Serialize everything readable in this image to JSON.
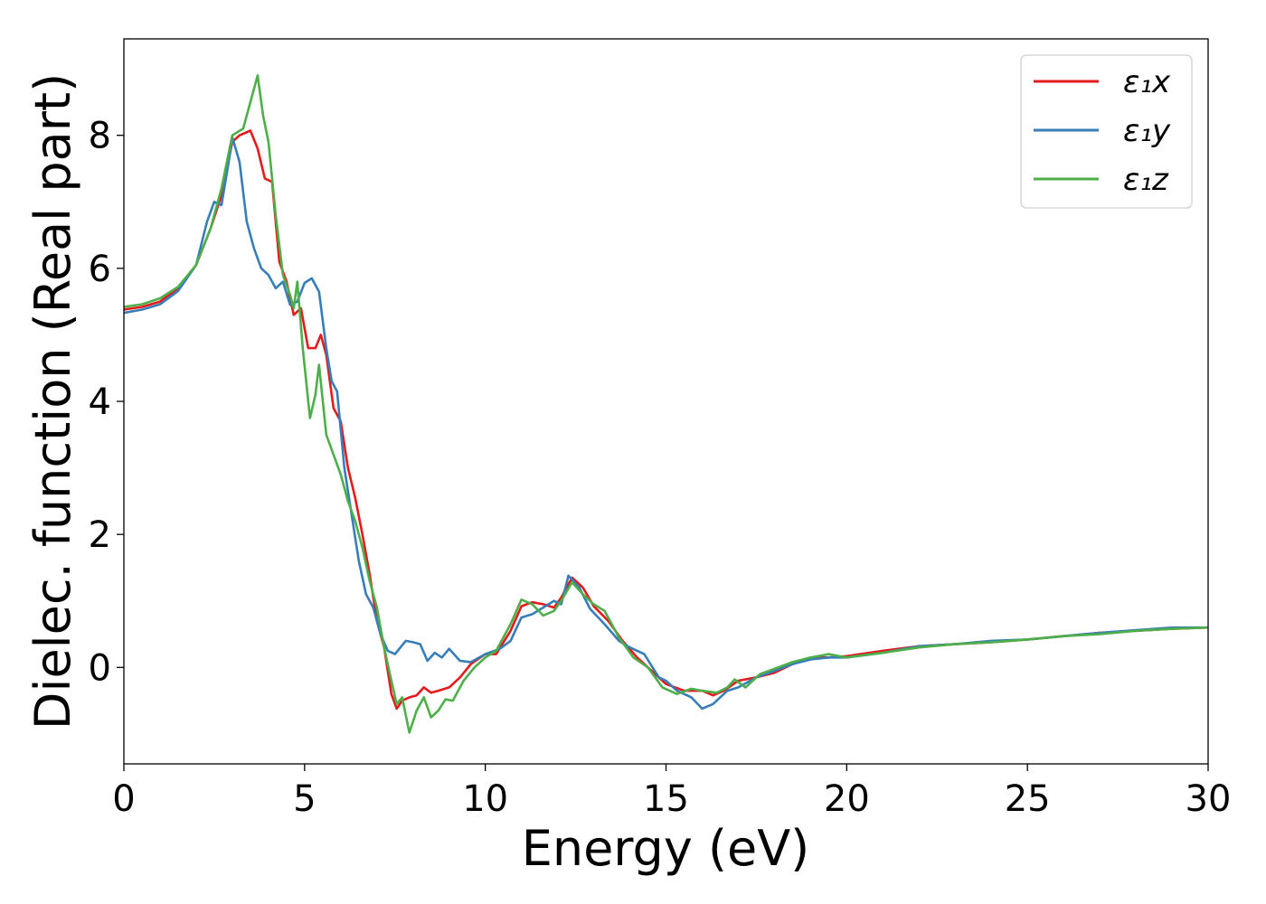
{
  "chart_data": {
    "type": "line",
    "xlabel": "Energy (eV)",
    "ylabel": "Dielec. function (Real part)",
    "xlim": [
      0,
      30
    ],
    "ylim": [
      -1.45,
      9.45
    ],
    "xticks": [
      0,
      5,
      10,
      15,
      20,
      25,
      30
    ],
    "yticks": [
      0,
      2,
      4,
      6,
      8
    ],
    "grid": false,
    "legend": "top-right",
    "series": [
      {
        "name": "ε₁x",
        "color": "#e41a1c",
        "points": [
          [
            0,
            5.38
          ],
          [
            0.5,
            5.42
          ],
          [
            1,
            5.5
          ],
          [
            1.5,
            5.7
          ],
          [
            2,
            6.05
          ],
          [
            2.4,
            6.6
          ],
          [
            2.7,
            7.1
          ],
          [
            3,
            7.9
          ],
          [
            3.2,
            8.0
          ],
          [
            3.5,
            8.07
          ],
          [
            3.7,
            7.8
          ],
          [
            3.9,
            7.35
          ],
          [
            4.1,
            7.3
          ],
          [
            4.3,
            6.1
          ],
          [
            4.5,
            5.8
          ],
          [
            4.7,
            5.3
          ],
          [
            4.9,
            5.4
          ],
          [
            5.1,
            4.8
          ],
          [
            5.3,
            4.8
          ],
          [
            5.45,
            5.0
          ],
          [
            5.6,
            4.7
          ],
          [
            5.8,
            3.9
          ],
          [
            6.0,
            3.7
          ],
          [
            6.2,
            3.0
          ],
          [
            6.4,
            2.55
          ],
          [
            6.6,
            2.0
          ],
          [
            6.8,
            1.4
          ],
          [
            7.0,
            0.7
          ],
          [
            7.2,
            0.3
          ],
          [
            7.4,
            -0.4
          ],
          [
            7.55,
            -0.62
          ],
          [
            7.7,
            -0.5
          ],
          [
            7.9,
            -0.45
          ],
          [
            8.1,
            -0.42
          ],
          [
            8.3,
            -0.3
          ],
          [
            8.5,
            -0.38
          ],
          [
            8.7,
            -0.35
          ],
          [
            9.0,
            -0.3
          ],
          [
            9.3,
            -0.15
          ],
          [
            9.6,
            0.05
          ],
          [
            10.0,
            0.2
          ],
          [
            10.3,
            0.2
          ],
          [
            10.7,
            0.55
          ],
          [
            11.0,
            0.92
          ],
          [
            11.3,
            0.98
          ],
          [
            11.6,
            0.95
          ],
          [
            11.9,
            0.9
          ],
          [
            12.1,
            1.05
          ],
          [
            12.4,
            1.35
          ],
          [
            12.7,
            1.2
          ],
          [
            13.0,
            0.92
          ],
          [
            13.4,
            0.7
          ],
          [
            13.8,
            0.4
          ],
          [
            14.2,
            0.15
          ],
          [
            14.6,
            -0.05
          ],
          [
            15.0,
            -0.25
          ],
          [
            15.5,
            -0.35
          ],
          [
            16.0,
            -0.35
          ],
          [
            16.3,
            -0.42
          ],
          [
            16.6,
            -0.35
          ],
          [
            17.0,
            -0.2
          ],
          [
            17.5,
            -0.15
          ],
          [
            18.0,
            -0.08
          ],
          [
            18.5,
            0.05
          ],
          [
            19.0,
            0.15
          ],
          [
            19.5,
            0.15
          ],
          [
            20.0,
            0.17
          ],
          [
            21.0,
            0.25
          ],
          [
            22.0,
            0.32
          ],
          [
            23.0,
            0.35
          ],
          [
            24.0,
            0.38
          ],
          [
            25.0,
            0.42
          ],
          [
            26.0,
            0.47
          ],
          [
            27.0,
            0.52
          ],
          [
            28.0,
            0.55
          ],
          [
            29.0,
            0.58
          ],
          [
            30.0,
            0.6
          ]
        ]
      },
      {
        "name": "ε₁y",
        "color": "#377eb8",
        "points": [
          [
            0,
            5.33
          ],
          [
            0.5,
            5.38
          ],
          [
            1,
            5.46
          ],
          [
            1.5,
            5.66
          ],
          [
            2,
            6.05
          ],
          [
            2.3,
            6.7
          ],
          [
            2.5,
            7.0
          ],
          [
            2.7,
            6.95
          ],
          [
            2.9,
            7.6
          ],
          [
            3.0,
            7.97
          ],
          [
            3.2,
            7.6
          ],
          [
            3.4,
            6.7
          ],
          [
            3.6,
            6.3
          ],
          [
            3.8,
            6.0
          ],
          [
            4.0,
            5.9
          ],
          [
            4.2,
            5.7
          ],
          [
            4.4,
            5.8
          ],
          [
            4.6,
            5.45
          ],
          [
            4.8,
            5.5
          ],
          [
            5.0,
            5.78
          ],
          [
            5.2,
            5.85
          ],
          [
            5.4,
            5.65
          ],
          [
            5.6,
            4.8
          ],
          [
            5.75,
            4.3
          ],
          [
            5.9,
            4.15
          ],
          [
            6.1,
            3.0
          ],
          [
            6.3,
            2.3
          ],
          [
            6.5,
            1.6
          ],
          [
            6.7,
            1.1
          ],
          [
            6.9,
            0.9
          ],
          [
            7.1,
            0.5
          ],
          [
            7.3,
            0.25
          ],
          [
            7.5,
            0.2
          ],
          [
            7.8,
            0.4
          ],
          [
            8.0,
            0.38
          ],
          [
            8.2,
            0.35
          ],
          [
            8.4,
            0.1
          ],
          [
            8.6,
            0.22
          ],
          [
            8.8,
            0.15
          ],
          [
            9.0,
            0.28
          ],
          [
            9.3,
            0.1
          ],
          [
            9.6,
            0.08
          ],
          [
            10.0,
            0.2
          ],
          [
            10.4,
            0.28
          ],
          [
            10.7,
            0.4
          ],
          [
            11.0,
            0.75
          ],
          [
            11.3,
            0.8
          ],
          [
            11.6,
            0.9
          ],
          [
            11.9,
            1.0
          ],
          [
            12.1,
            0.95
          ],
          [
            12.3,
            1.38
          ],
          [
            12.6,
            1.2
          ],
          [
            12.9,
            0.88
          ],
          [
            13.3,
            0.65
          ],
          [
            13.7,
            0.4
          ],
          [
            14.0,
            0.3
          ],
          [
            14.4,
            0.2
          ],
          [
            14.8,
            -0.15
          ],
          [
            15.0,
            -0.2
          ],
          [
            15.3,
            -0.35
          ],
          [
            15.7,
            -0.45
          ],
          [
            16.0,
            -0.62
          ],
          [
            16.3,
            -0.55
          ],
          [
            16.7,
            -0.35
          ],
          [
            17.0,
            -0.3
          ],
          [
            17.5,
            -0.15
          ],
          [
            18.0,
            -0.05
          ],
          [
            18.5,
            0.05
          ],
          [
            19.0,
            0.12
          ],
          [
            19.5,
            0.15
          ],
          [
            20.0,
            0.15
          ],
          [
            21.0,
            0.22
          ],
          [
            22.0,
            0.32
          ],
          [
            23.0,
            0.35
          ],
          [
            24.0,
            0.4
          ],
          [
            25.0,
            0.42
          ],
          [
            26.0,
            0.47
          ],
          [
            27.0,
            0.52
          ],
          [
            28.0,
            0.56
          ],
          [
            29.0,
            0.6
          ],
          [
            30.0,
            0.6
          ]
        ]
      },
      {
        "name": "ε₁z",
        "color": "#4daf4a",
        "points": [
          [
            0,
            5.42
          ],
          [
            0.5,
            5.46
          ],
          [
            1,
            5.55
          ],
          [
            1.5,
            5.72
          ],
          [
            2,
            6.05
          ],
          [
            2.4,
            6.6
          ],
          [
            2.7,
            7.2
          ],
          [
            3.0,
            8.0
          ],
          [
            3.3,
            8.1
          ],
          [
            3.5,
            8.5
          ],
          [
            3.7,
            8.9
          ],
          [
            3.85,
            8.3
          ],
          [
            4.0,
            7.9
          ],
          [
            4.2,
            6.8
          ],
          [
            4.4,
            5.9
          ],
          [
            4.6,
            5.6
          ],
          [
            4.7,
            5.4
          ],
          [
            4.8,
            5.8
          ],
          [
            4.95,
            4.8
          ],
          [
            5.15,
            3.75
          ],
          [
            5.3,
            4.1
          ],
          [
            5.4,
            4.55
          ],
          [
            5.6,
            3.5
          ],
          [
            5.8,
            3.2
          ],
          [
            6.0,
            2.9
          ],
          [
            6.2,
            2.5
          ],
          [
            6.4,
            2.2
          ],
          [
            6.6,
            1.8
          ],
          [
            6.8,
            1.3
          ],
          [
            7.0,
            0.9
          ],
          [
            7.2,
            0.3
          ],
          [
            7.4,
            -0.2
          ],
          [
            7.55,
            -0.55
          ],
          [
            7.7,
            -0.45
          ],
          [
            7.9,
            -0.98
          ],
          [
            8.1,
            -0.65
          ],
          [
            8.3,
            -0.45
          ],
          [
            8.5,
            -0.75
          ],
          [
            8.7,
            -0.65
          ],
          [
            8.9,
            -0.48
          ],
          [
            9.1,
            -0.5
          ],
          [
            9.4,
            -0.2
          ],
          [
            9.7,
            0.0
          ],
          [
            10.0,
            0.15
          ],
          [
            10.3,
            0.25
          ],
          [
            10.7,
            0.65
          ],
          [
            11.0,
            1.02
          ],
          [
            11.3,
            0.95
          ],
          [
            11.6,
            0.78
          ],
          [
            11.9,
            0.85
          ],
          [
            12.1,
            1.0
          ],
          [
            12.4,
            1.28
          ],
          [
            12.7,
            1.1
          ],
          [
            13.0,
            0.95
          ],
          [
            13.3,
            0.85
          ],
          [
            13.7,
            0.45
          ],
          [
            14.1,
            0.15
          ],
          [
            14.5,
            0.0
          ],
          [
            14.9,
            -0.3
          ],
          [
            15.3,
            -0.4
          ],
          [
            15.7,
            -0.32
          ],
          [
            16.0,
            -0.35
          ],
          [
            16.4,
            -0.38
          ],
          [
            16.7,
            -0.3
          ],
          [
            16.9,
            -0.18
          ],
          [
            17.2,
            -0.3
          ],
          [
            17.6,
            -0.1
          ],
          [
            18.0,
            -0.02
          ],
          [
            18.5,
            0.08
          ],
          [
            19.0,
            0.15
          ],
          [
            19.5,
            0.2
          ],
          [
            20.0,
            0.15
          ],
          [
            21.0,
            0.22
          ],
          [
            22.0,
            0.3
          ],
          [
            23.0,
            0.35
          ],
          [
            24.0,
            0.38
          ],
          [
            25.0,
            0.42
          ],
          [
            26.0,
            0.47
          ],
          [
            27.0,
            0.5
          ],
          [
            28.0,
            0.55
          ],
          [
            29.0,
            0.58
          ],
          [
            30.0,
            0.6
          ]
        ]
      }
    ]
  }
}
